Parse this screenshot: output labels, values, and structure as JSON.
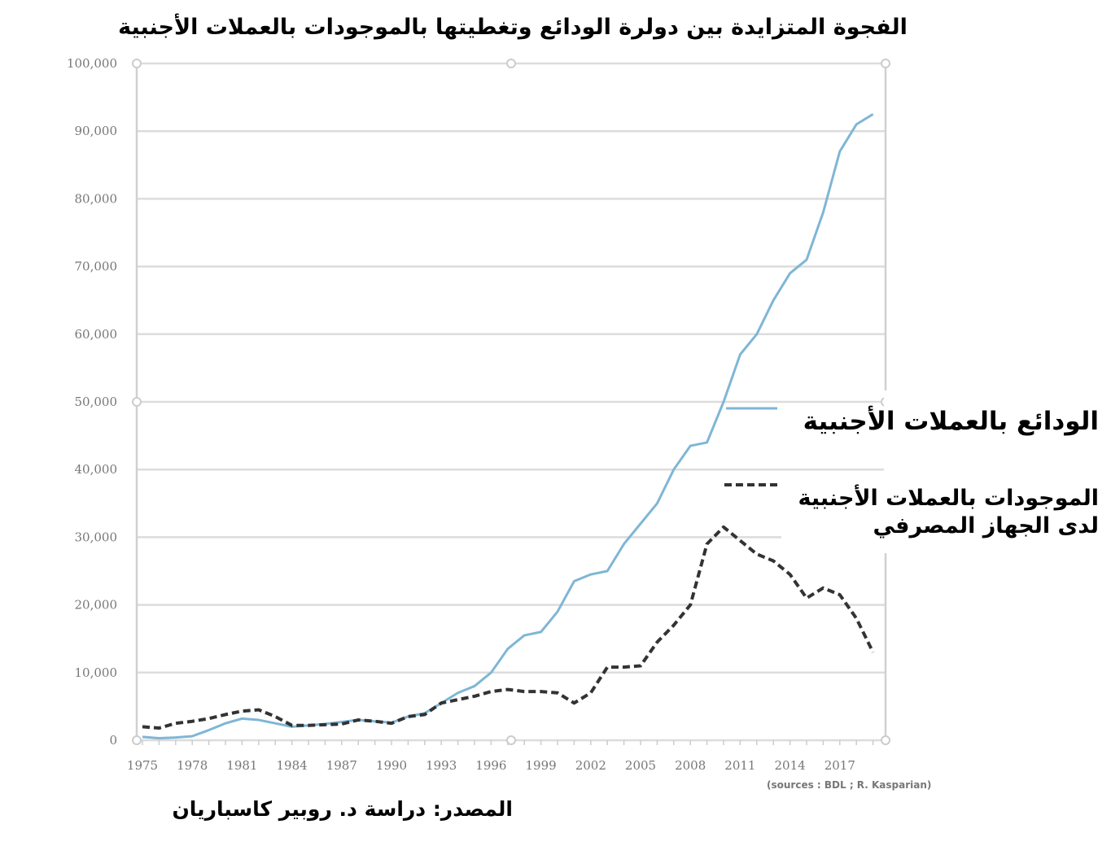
{
  "chart_data": {
    "type": "line",
    "title": "الفجوة المتزايدة بين دولرة الودائع وتغطيتها بالموجودات بالعملات الأجنبية",
    "xlabel": "",
    "ylabel": "",
    "ylim": [
      0,
      100000
    ],
    "xlim": [
      1975,
      2019
    ],
    "grid": true,
    "legend_placement": "right",
    "y_ticks": [
      "0",
      "10,000",
      "20,000",
      "30,000",
      "40,000",
      "50,000",
      "60,000",
      "70,000",
      "80,000",
      "90,000",
      "100,000"
    ],
    "x_ticks": [
      "1975",
      "1978",
      "1981",
      "1984",
      "1987",
      "1990",
      "1993",
      "1996",
      "1999",
      "2002",
      "2005",
      "2008",
      "2011",
      "2014",
      "2017"
    ],
    "x": [
      1975,
      1976,
      1977,
      1978,
      1979,
      1980,
      1981,
      1982,
      1983,
      1984,
      1985,
      1986,
      1987,
      1988,
      1989,
      1990,
      1991,
      1992,
      1993,
      1994,
      1995,
      1996,
      1997,
      1998,
      1999,
      2000,
      2001,
      2002,
      2003,
      2004,
      2005,
      2006,
      2007,
      2008,
      2009,
      2010,
      2011,
      2012,
      2013,
      2014,
      2015,
      2016,
      2017,
      2018,
      2019
    ],
    "series": [
      {
        "name": "الودائع بالعملات الأجنبية",
        "color": "#7fb6d6",
        "style": "solid",
        "values": [
          500,
          300,
          400,
          600,
          1500,
          2500,
          3200,
          3000,
          2500,
          2000,
          2200,
          2400,
          2700,
          3000,
          2800,
          2600,
          3500,
          4000,
          5500,
          7000,
          8000,
          10000,
          13500,
          15500,
          16000,
          19000,
          23500,
          24500,
          25000,
          29000,
          32000,
          35000,
          40000,
          43500,
          44000,
          50000,
          57000,
          60000,
          65000,
          69000,
          71000,
          78000,
          87000,
          91000,
          92500
        ]
      },
      {
        "name": "الموجودات بالعملات الأجنبية لدى الجهاز المصرفي",
        "color": "#333333",
        "style": "dashed",
        "values": [
          2000,
          1800,
          2500,
          2800,
          3200,
          3800,
          4300,
          4500,
          3500,
          2200,
          2200,
          2300,
          2400,
          3000,
          2800,
          2500,
          3500,
          3800,
          5500,
          6000,
          6500,
          7200,
          7500,
          7200,
          7200,
          7000,
          5500,
          7000,
          10800,
          10800,
          11000,
          14500,
          17000,
          20000,
          29000,
          31500,
          29500,
          27500,
          26500,
          24500,
          21000,
          22500,
          21500,
          18000,
          13000
        ]
      }
    ],
    "annotation_sources": "(sources : BDL ; R. Kasparian)"
  },
  "footer": {
    "source": "المصدر: دراسة د. روبير كاسباريان"
  }
}
